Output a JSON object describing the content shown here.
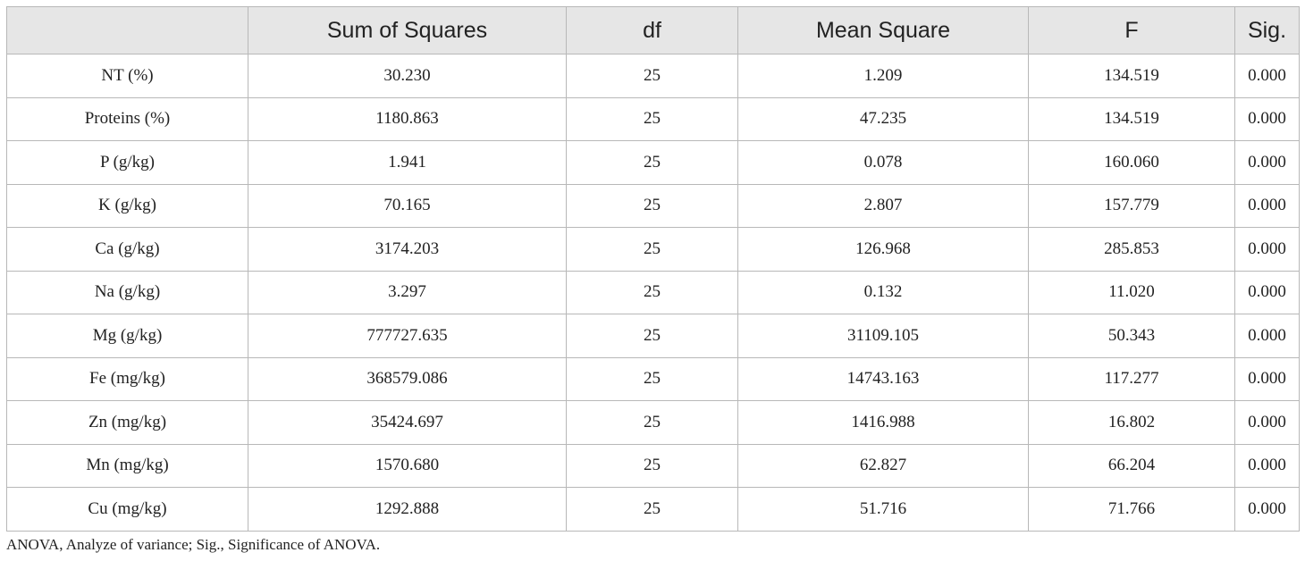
{
  "table": {
    "headers": [
      "",
      "Sum of Squares",
      "df",
      "Mean Square",
      "F",
      "Sig."
    ],
    "rows": [
      [
        "NT (%)",
        "30.230",
        "25",
        "1.209",
        "134.519",
        "0.000"
      ],
      [
        "Proteins (%)",
        "1180.863",
        "25",
        "47.235",
        "134.519",
        "0.000"
      ],
      [
        "P (g/kg)",
        "1.941",
        "25",
        "0.078",
        "160.060",
        "0.000"
      ],
      [
        "K (g/kg)",
        "70.165",
        "25",
        "2.807",
        "157.779",
        "0.000"
      ],
      [
        "Ca (g/kg)",
        "3174.203",
        "25",
        "126.968",
        "285.853",
        "0.000"
      ],
      [
        "Na (g/kg)",
        "3.297",
        "25",
        "0.132",
        "11.020",
        "0.000"
      ],
      [
        "Mg (g/kg)",
        "777727.635",
        "25",
        "31109.105",
        "50.343",
        "0.000"
      ],
      [
        "Fe (mg/kg)",
        "368579.086",
        "25",
        "14743.163",
        "117.277",
        "0.000"
      ],
      [
        "Zn (mg/kg)",
        "35424.697",
        "25",
        "1416.988",
        "16.802",
        "0.000"
      ],
      [
        "Mn (mg/kg)",
        "1570.680",
        "25",
        "62.827",
        "66.204",
        "0.000"
      ],
      [
        "Cu (mg/kg)",
        "1292.888",
        "25",
        "51.716",
        "71.766",
        "0.000"
      ]
    ]
  },
  "footnote": "ANOVA, Analyze of variance; Sig., Significance of ANOVA."
}
